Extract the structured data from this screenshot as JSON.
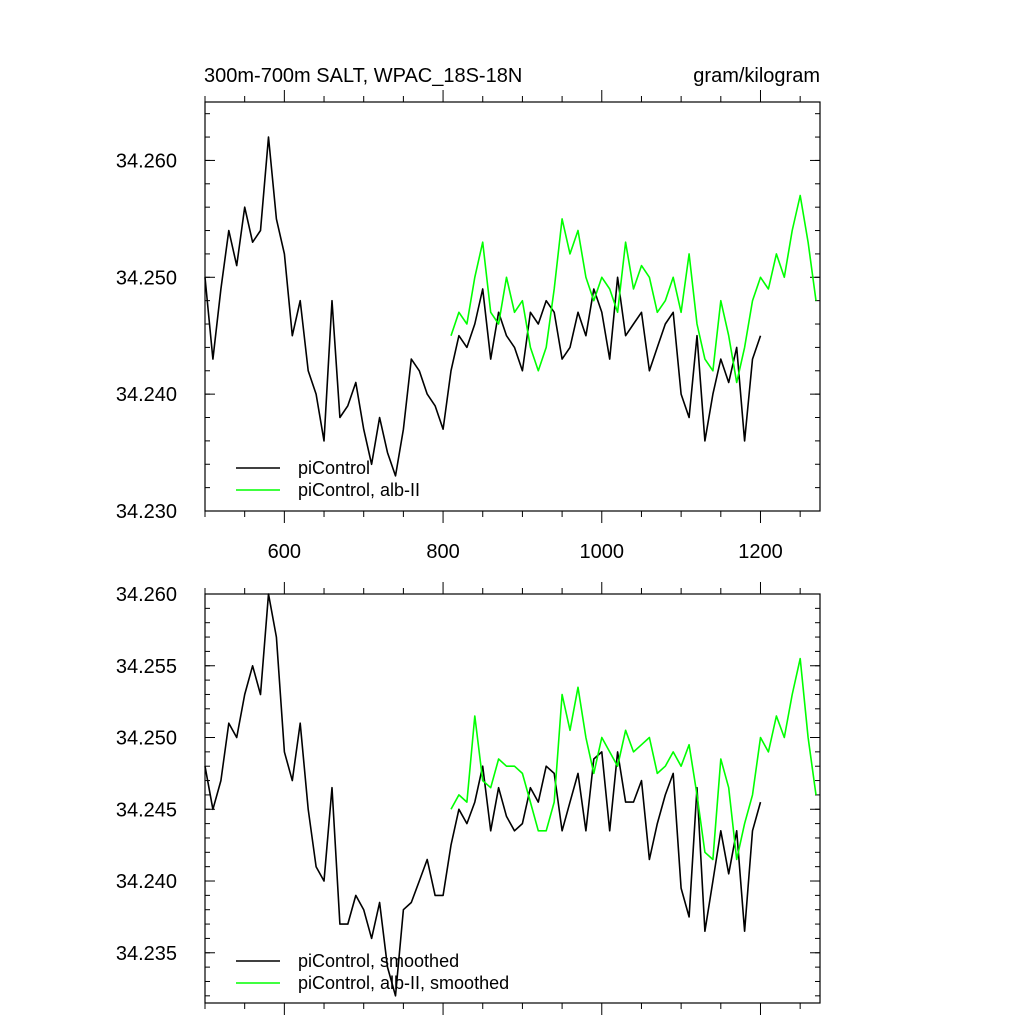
{
  "chart_data": [
    {
      "type": "line",
      "title": "300m-700m SALT, WPAC_18S-18N",
      "units": "gram/kilogram",
      "xlim": [
        500,
        1275
      ],
      "ylim": [
        34.23,
        34.265
      ],
      "xticks": [
        600,
        800,
        1000,
        1200
      ],
      "yticks": [
        34.23,
        34.24,
        34.25,
        34.26
      ],
      "ytick_labels": [
        "34.230",
        "34.240",
        "34.250",
        "34.260"
      ],
      "legend_position": "bottom-left",
      "series": [
        {
          "name": "piControl",
          "color": "#000000",
          "x": [
            500,
            510,
            520,
            530,
            540,
            550,
            560,
            570,
            580,
            590,
            600,
            610,
            620,
            630,
            640,
            650,
            660,
            670,
            680,
            690,
            700,
            710,
            720,
            730,
            740,
            750,
            760,
            770,
            780,
            790,
            800,
            810,
            820,
            830,
            840,
            850,
            860,
            870,
            880,
            890,
            900,
            910,
            920,
            930,
            940,
            950,
            960,
            970,
            980,
            990,
            1000,
            1010,
            1020,
            1030,
            1040,
            1050,
            1060,
            1070,
            1080,
            1090,
            1100,
            1110,
            1120,
            1130,
            1140,
            1150,
            1160,
            1170,
            1180,
            1190,
            1200
          ],
          "y": [
            34.25,
            34.243,
            34.249,
            34.254,
            34.251,
            34.256,
            34.253,
            34.254,
            34.262,
            34.255,
            34.252,
            34.245,
            34.248,
            34.242,
            34.24,
            34.236,
            34.248,
            34.238,
            34.239,
            34.241,
            34.237,
            34.234,
            34.238,
            34.235,
            34.233,
            34.237,
            34.243,
            34.242,
            34.24,
            34.239,
            34.237,
            34.242,
            34.245,
            34.244,
            34.246,
            34.249,
            34.243,
            34.247,
            34.245,
            34.244,
            34.242,
            34.247,
            34.246,
            34.248,
            34.247,
            34.243,
            34.244,
            34.247,
            34.245,
            34.249,
            34.247,
            34.243,
            34.25,
            34.245,
            34.246,
            34.247,
            34.242,
            34.244,
            34.246,
            34.247,
            34.24,
            34.238,
            34.245,
            34.236,
            34.24,
            34.243,
            34.241,
            34.244,
            34.236,
            34.243,
            34.245
          ]
        },
        {
          "name": "piControl, alb-II",
          "color": "#00ff00",
          "x": [
            810,
            820,
            830,
            840,
            850,
            860,
            870,
            880,
            890,
            900,
            910,
            920,
            930,
            940,
            950,
            960,
            970,
            980,
            990,
            1000,
            1010,
            1020,
            1030,
            1040,
            1050,
            1060,
            1070,
            1080,
            1090,
            1100,
            1110,
            1120,
            1130,
            1140,
            1150,
            1160,
            1170,
            1180,
            1190,
            1200,
            1210,
            1220,
            1230,
            1240,
            1250,
            1260,
            1270
          ],
          "y": [
            34.245,
            34.247,
            34.246,
            34.25,
            34.253,
            34.247,
            34.246,
            34.25,
            34.247,
            34.248,
            34.244,
            34.242,
            34.244,
            34.249,
            34.255,
            34.252,
            34.254,
            34.25,
            34.248,
            34.25,
            34.249,
            34.247,
            34.253,
            34.249,
            34.251,
            34.25,
            34.247,
            34.248,
            34.25,
            34.247,
            34.252,
            34.246,
            34.243,
            34.242,
            34.248,
            34.245,
            34.241,
            34.244,
            34.248,
            34.25,
            34.249,
            34.252,
            34.25,
            34.254,
            34.257,
            34.253,
            34.248
          ]
        }
      ]
    },
    {
      "type": "line",
      "xlim": [
        500,
        1275
      ],
      "ylim": [
        34.2315,
        34.26
      ],
      "xticks": [
        600,
        800,
        1000,
        1200
      ],
      "yticks": [
        34.235,
        34.24,
        34.245,
        34.25,
        34.255,
        34.26
      ],
      "ytick_labels": [
        "34.235",
        "34.240",
        "34.245",
        "34.250",
        "34.255",
        "34.260"
      ],
      "legend_position": "bottom-left",
      "series": [
        {
          "name": "piControl, smoothed",
          "color": "#000000",
          "x": [
            500,
            510,
            520,
            530,
            540,
            550,
            560,
            570,
            580,
            590,
            600,
            610,
            620,
            630,
            640,
            650,
            660,
            670,
            680,
            690,
            700,
            710,
            720,
            730,
            740,
            750,
            760,
            770,
            780,
            790,
            800,
            810,
            820,
            830,
            840,
            850,
            860,
            870,
            880,
            890,
            900,
            910,
            920,
            930,
            940,
            950,
            960,
            970,
            980,
            990,
            1000,
            1010,
            1020,
            1030,
            1040,
            1050,
            1060,
            1070,
            1080,
            1090,
            1100,
            1110,
            1120,
            1130,
            1140,
            1150,
            1160,
            1170,
            1180,
            1190,
            1200
          ],
          "y": [
            34.248,
            34.245,
            34.247,
            34.251,
            34.25,
            34.253,
            34.255,
            34.253,
            34.26,
            34.257,
            34.249,
            34.247,
            34.251,
            34.245,
            34.241,
            34.24,
            34.2465,
            34.237,
            34.237,
            34.239,
            34.238,
            34.236,
            34.2385,
            34.234,
            34.232,
            34.238,
            34.2385,
            34.24,
            34.2415,
            34.239,
            34.239,
            34.2425,
            34.245,
            34.244,
            34.2455,
            34.248,
            34.2435,
            34.2465,
            34.2445,
            34.2435,
            34.244,
            34.2465,
            34.2455,
            34.248,
            34.2475,
            34.2435,
            34.2455,
            34.2475,
            34.2435,
            34.2485,
            34.249,
            34.2435,
            34.249,
            34.2455,
            34.2455,
            34.247,
            34.2415,
            34.244,
            34.246,
            34.2475,
            34.2395,
            34.2375,
            34.2465,
            34.2365,
            34.24,
            34.2435,
            34.2405,
            34.2435,
            34.2365,
            34.2435,
            34.2455
          ]
        },
        {
          "name": "piControl, alb-II, smoothed",
          "color": "#00ff00",
          "x": [
            810,
            820,
            830,
            840,
            850,
            860,
            870,
            880,
            890,
            900,
            910,
            920,
            930,
            940,
            950,
            960,
            970,
            980,
            990,
            1000,
            1010,
            1020,
            1030,
            1040,
            1050,
            1060,
            1070,
            1080,
            1090,
            1100,
            1110,
            1120,
            1130,
            1140,
            1150,
            1160,
            1170,
            1180,
            1190,
            1200,
            1210,
            1220,
            1230,
            1240,
            1250,
            1260,
            1270
          ],
          "y": [
            34.245,
            34.246,
            34.2455,
            34.2515,
            34.247,
            34.2465,
            34.2485,
            34.248,
            34.248,
            34.2475,
            34.2455,
            34.2435,
            34.2435,
            34.2455,
            34.253,
            34.2505,
            34.2535,
            34.25,
            34.2475,
            34.25,
            34.249,
            34.248,
            34.2505,
            34.249,
            34.2495,
            34.25,
            34.2475,
            34.248,
            34.249,
            34.248,
            34.2495,
            34.246,
            34.242,
            34.2415,
            34.2485,
            34.2465,
            34.2415,
            34.244,
            34.246,
            34.25,
            34.249,
            34.2515,
            34.25,
            34.253,
            34.2555,
            34.25,
            34.246
          ]
        }
      ]
    }
  ]
}
